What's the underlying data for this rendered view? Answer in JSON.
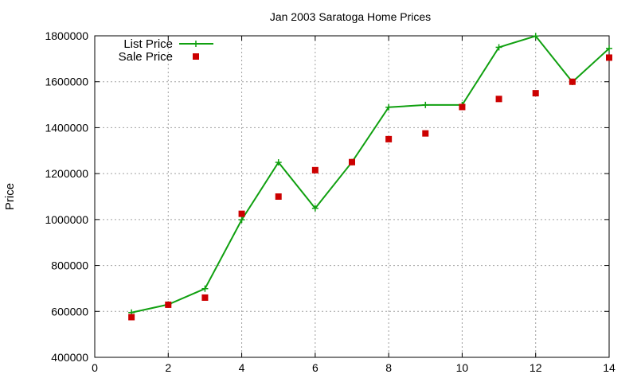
{
  "chart_data": {
    "type": "line",
    "title": "Jan 2003 Saratoga Home Prices",
    "xlabel": "",
    "ylabel": "Price",
    "xlim": [
      0,
      14
    ],
    "ylim": [
      400000,
      1800000
    ],
    "xticks": [
      0,
      2,
      4,
      6,
      8,
      10,
      12,
      14
    ],
    "yticks": [
      400000,
      600000,
      800000,
      1000000,
      1200000,
      1400000,
      1600000,
      1800000
    ],
    "grid": true,
    "legend_position": "top-left",
    "series": [
      {
        "name": "List Price",
        "style": "line-points",
        "marker": "plus",
        "color": "#10a010",
        "x": [
          1,
          2,
          3,
          4,
          5,
          6,
          7,
          8,
          9,
          10,
          11,
          12,
          13,
          14
        ],
        "y": [
          595000,
          630000,
          699000,
          999000,
          1249000,
          1049000,
          1250000,
          1489000,
          1499000,
          1499000,
          1750000,
          1799000,
          1599000,
          1745000
        ]
      },
      {
        "name": "Sale Price",
        "style": "points",
        "marker": "square",
        "color": "#cc0000",
        "x": [
          1,
          2,
          3,
          4,
          5,
          6,
          7,
          8,
          9,
          10,
          11,
          12,
          13,
          14
        ],
        "y": [
          575000,
          629000,
          660000,
          1025000,
          1100000,
          1215000,
          1250000,
          1350000,
          1375000,
          1490000,
          1525000,
          1550000,
          1600000,
          1705000
        ]
      }
    ]
  }
}
